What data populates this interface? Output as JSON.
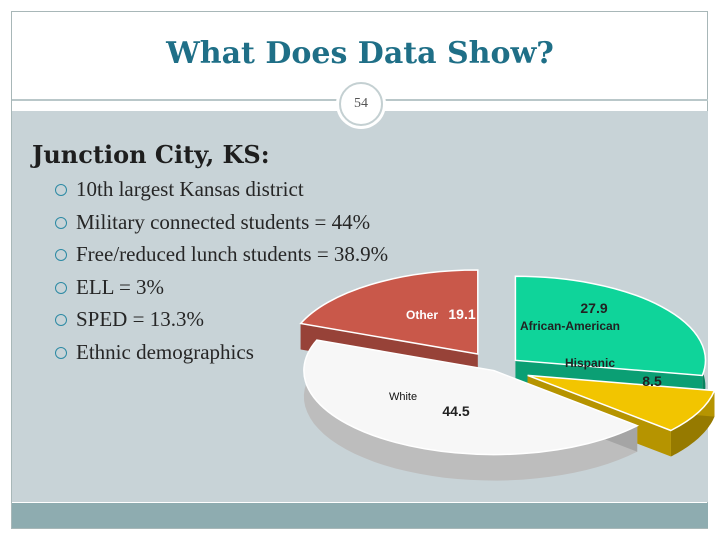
{
  "slide": {
    "title": "What Does Data Show?",
    "page_number": "54",
    "heading": "Junction City, KS:",
    "bullets": [
      "10th largest Kansas district",
      "Military connected students = 44%",
      "Free/reduced lunch students = 38.9%",
      "ELL = 3%",
      "SPED = 13.3%",
      "Ethnic demographics"
    ]
  },
  "chart_data": {
    "type": "pie",
    "style": "3d exploded",
    "slices": [
      {
        "label": "African-American",
        "value": 27.9,
        "color": "#0fd49a"
      },
      {
        "label": "Hispanic",
        "value": 8.5,
        "color": "#f2c500"
      },
      {
        "label": "White",
        "value": 44.5,
        "color": "#ffffff"
      },
      {
        "label": "Other",
        "value": 19.1,
        "color": "#c9584a"
      }
    ]
  },
  "colors": {
    "title": "#1f6f87",
    "bullet_marker": "#2d8aa4",
    "content_panel": "#c8d3d7",
    "footer_bar": "#8eacb0"
  }
}
